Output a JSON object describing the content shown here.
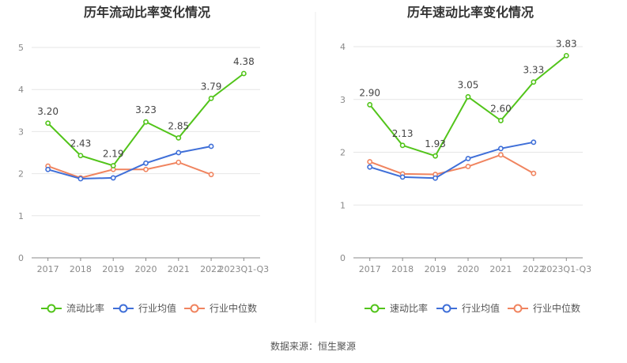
{
  "chart_data": [
    {
      "type": "line",
      "title": "历年流动比率变化情况",
      "categories": [
        "2017",
        "2018",
        "2019",
        "2020",
        "2021",
        "2022",
        "2023Q1-Q3"
      ],
      "ylim": [
        0,
        5
      ],
      "yticks": [
        0,
        1,
        2,
        3,
        4,
        5
      ],
      "grid": true,
      "legend_position": "bottom",
      "series": [
        {
          "name": "流动比率",
          "color": "#52c41a",
          "values": [
            3.2,
            2.43,
            2.19,
            3.23,
            2.85,
            3.79,
            4.38
          ],
          "labels": [
            "3.20",
            "2.43",
            "2.19",
            "3.23",
            "2.85",
            "3.79",
            "4.38"
          ]
        },
        {
          "name": "行业均值",
          "color": "#3f6fd8",
          "values": [
            2.1,
            1.88,
            1.9,
            2.25,
            2.5,
            2.65,
            null
          ]
        },
        {
          "name": "行业中位数",
          "color": "#f0845f",
          "values": [
            2.18,
            1.9,
            2.1,
            2.1,
            2.27,
            1.98,
            null
          ]
        }
      ]
    },
    {
      "type": "line",
      "title": "历年速动比率变化情况",
      "categories": [
        "2017",
        "2018",
        "2019",
        "2020",
        "2021",
        "2022",
        "2023Q1-Q3"
      ],
      "ylim": [
        0,
        4
      ],
      "yticks": [
        0,
        1,
        2,
        3,
        4
      ],
      "grid": true,
      "legend_position": "bottom",
      "series": [
        {
          "name": "速动比率",
          "color": "#52c41a",
          "values": [
            2.9,
            2.13,
            1.93,
            3.05,
            2.6,
            3.33,
            3.83
          ],
          "labels": [
            "2.90",
            "2.13",
            "1.93",
            "3.05",
            "2.60",
            "3.33",
            "3.83"
          ]
        },
        {
          "name": "行业均值",
          "color": "#3f6fd8",
          "values": [
            1.72,
            1.53,
            1.51,
            1.88,
            2.07,
            2.19,
            null
          ]
        },
        {
          "name": "行业中位数",
          "color": "#f0845f",
          "values": [
            1.82,
            1.59,
            1.58,
            1.73,
            1.95,
            1.6,
            null
          ]
        }
      ]
    }
  ],
  "footer": {
    "source": "数据来源：恒生聚源"
  }
}
